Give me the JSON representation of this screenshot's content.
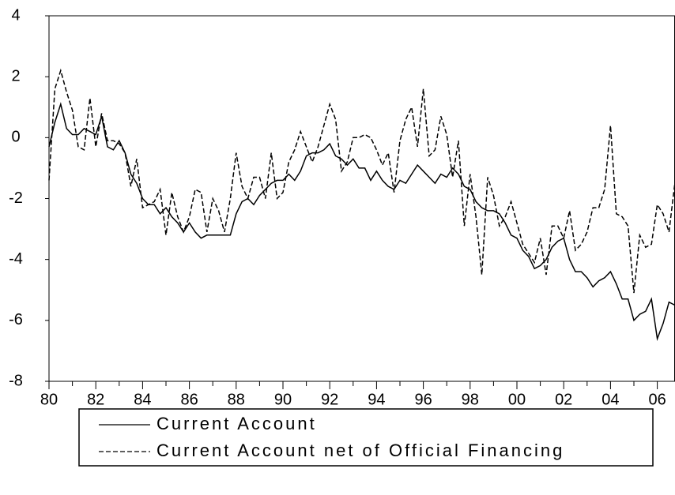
{
  "chart_data": {
    "type": "line",
    "categories": [
      "80",
      null,
      null,
      null,
      null,
      null,
      null,
      null,
      "82",
      null,
      null,
      null,
      null,
      null,
      null,
      null,
      "84",
      null,
      null,
      null,
      null,
      null,
      null,
      null,
      "86",
      null,
      null,
      null,
      null,
      null,
      null,
      null,
      "88",
      null,
      null,
      null,
      null,
      null,
      null,
      null,
      "90",
      null,
      null,
      null,
      null,
      null,
      null,
      null,
      "92",
      null,
      null,
      null,
      null,
      null,
      null,
      null,
      "94",
      null,
      null,
      null,
      null,
      null,
      null,
      null,
      "96",
      null,
      null,
      null,
      null,
      null,
      null,
      null,
      "98",
      null,
      null,
      null,
      null,
      null,
      null,
      null,
      "00",
      null,
      null,
      null,
      null,
      null,
      null,
      null,
      "02",
      null,
      null,
      null,
      null,
      null,
      null,
      null,
      "04",
      null,
      null,
      null,
      null,
      null,
      null,
      null,
      "06",
      null,
      null,
      null
    ],
    "series": [
      {
        "name": "Current Account",
        "color": "#000000",
        "line_style": "solid",
        "values": [
          -0.3,
          0.5,
          1.1,
          0.3,
          0.1,
          0.1,
          0.3,
          0.2,
          0.1,
          0.7,
          -0.3,
          -0.4,
          -0.1,
          -0.5,
          -1.2,
          -1.5,
          -2.0,
          -2.2,
          -2.2,
          -2.5,
          -2.3,
          -2.6,
          -2.8,
          -3.1,
          -2.8,
          -3.1,
          -3.3,
          -3.2,
          -3.2,
          -3.2,
          -3.2,
          -3.2,
          -2.5,
          -2.1,
          -2.0,
          -2.2,
          -1.9,
          -1.7,
          -1.5,
          -1.4,
          -1.4,
          -1.2,
          -1.4,
          -1.1,
          -0.6,
          -0.5,
          -0.5,
          -0.4,
          -0.2,
          -0.6,
          -0.7,
          -0.9,
          -0.7,
          -1.0,
          -1.0,
          -1.4,
          -1.1,
          -1.4,
          -1.6,
          -1.7,
          -1.4,
          -1.5,
          -1.2,
          -0.9,
          -1.1,
          -1.3,
          -1.5,
          -1.2,
          -1.3,
          -1.0,
          -1.2,
          -1.6,
          -1.7,
          -2.1,
          -2.3,
          -2.4,
          -2.4,
          -2.5,
          -2.8,
          -3.2,
          -3.3,
          -3.7,
          -3.9,
          -4.3,
          -4.2,
          -4.0,
          -3.6,
          -3.4,
          -3.3,
          -4.0,
          -4.4,
          -4.4,
          -4.6,
          -4.9,
          -4.7,
          -4.6,
          -4.4,
          -4.8,
          -5.3,
          -5.3,
          -6.0,
          -5.8,
          -5.7,
          -5.3,
          -6.6,
          -6.1,
          -5.4,
          -5.5
        ]
      },
      {
        "name": "Current Account net of Official Financing",
        "color": "#000000",
        "line_style": "dashed",
        "values": [
          -1.4,
          1.6,
          2.2,
          1.5,
          0.9,
          -0.3,
          -0.4,
          1.3,
          -0.3,
          0.8,
          -0.1,
          -0.1,
          -0.2,
          -0.5,
          -1.6,
          -0.7,
          -2.3,
          -2.2,
          -2.1,
          -1.7,
          -3.2,
          -1.8,
          -2.6,
          -3.1,
          -2.6,
          -1.7,
          -1.8,
          -3.1,
          -2.0,
          -2.4,
          -3.1,
          -2.0,
          -0.5,
          -1.6,
          -2.0,
          -1.3,
          -1.3,
          -2.0,
          -0.5,
          -2.0,
          -1.8,
          -0.8,
          -0.4,
          0.2,
          -0.3,
          -0.8,
          -0.3,
          0.4,
          1.1,
          0.6,
          -1.1,
          -0.8,
          0.0,
          0.0,
          0.1,
          0.0,
          -0.4,
          -0.9,
          -0.5,
          -1.8,
          -0.1,
          0.6,
          1.0,
          -0.3,
          1.6,
          -0.6,
          -0.4,
          0.7,
          0.1,
          -1.3,
          -0.1,
          -2.9,
          -1.2,
          -2.6,
          -4.5,
          -1.3,
          -1.9,
          -2.9,
          -2.6,
          -2.1,
          -2.8,
          -3.5,
          -3.8,
          -4.1,
          -3.3,
          -4.5,
          -2.9,
          -2.9,
          -3.3,
          -2.4,
          -3.7,
          -3.5,
          -3.1,
          -2.3,
          -2.3,
          -1.7,
          0.4,
          -2.5,
          -2.6,
          -2.9,
          -5.1,
          -3.2,
          -3.6,
          -3.5,
          -2.2,
          -2.5,
          -3.1,
          -1.5
        ]
      }
    ],
    "ylim": [
      -8,
      4
    ],
    "yticks": [
      -8,
      -6,
      -4,
      -2,
      0,
      2,
      4
    ],
    "grid": false
  }
}
